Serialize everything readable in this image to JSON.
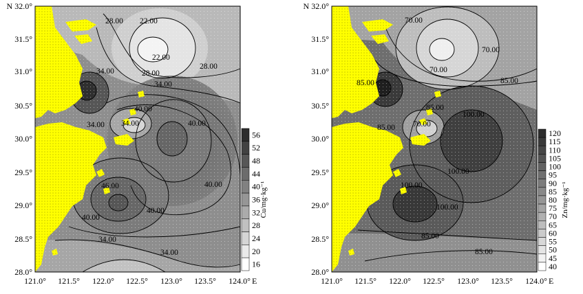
{
  "maps": [
    {
      "north_label": "N 32.0°",
      "lat_ticks": [
        "31.5°",
        "31.0°",
        "30.5°",
        "30.0°",
        "29.5°",
        "29.0°",
        "28.5°",
        "28.0°"
      ],
      "lon_ticks": [
        "121.0°",
        "121.5°",
        "122.0°",
        "122.5°",
        "123.0°",
        "123.5°",
        "124.0°"
      ],
      "east_label": "E",
      "contour_labels": [
        "28.00",
        "22.00",
        "22.00",
        "28.00",
        "28.00",
        "34.00",
        "34.00",
        "40.00",
        "34.00",
        "34.00",
        "40.00",
        "40.00",
        "46.00",
        "40.00",
        "40.00",
        "34.00",
        "34.00"
      ],
      "legend_values": [
        "56",
        "52",
        "48",
        "44",
        "40",
        "36",
        "32",
        "28",
        "24",
        "20",
        "16"
      ],
      "legend_unit": "Cu/mg·kg⁻¹"
    },
    {
      "north_label": "N 32.0°",
      "lat_ticks": [
        "31.5°",
        "31.0°",
        "30.5°",
        "30.0°",
        "29.5°",
        "29.0°",
        "28.5°",
        "28.0°"
      ],
      "lon_ticks": [
        "121.0°",
        "121.5°",
        "122.0°",
        "122.5°",
        "123.0°",
        "123.5°",
        "124.0°"
      ],
      "east_label": "E",
      "contour_labels": [
        "70.00",
        "70.00",
        "70.00",
        "85.00",
        "85.00",
        "85.00",
        "85.00",
        "70.00",
        "100.00",
        "100.00",
        "100.00",
        "100.00",
        "85.00",
        "85.00"
      ],
      "legend_values": [
        "120",
        "115",
        "110",
        "105",
        "100",
        "95",
        "90",
        "85",
        "80",
        "75",
        "70",
        "65",
        "60",
        "55",
        "50",
        "45",
        "40"
      ],
      "legend_unit": "Zn/mg·kg⁻¹"
    }
  ],
  "colors": {
    "land": "#ffff00",
    "land_stipple": "#a8a800",
    "sea_light": "#ebebeb",
    "sea_mid": "#9c9c9c",
    "sea_dark": "#4a4a4a",
    "contour_line": "#000000"
  }
}
